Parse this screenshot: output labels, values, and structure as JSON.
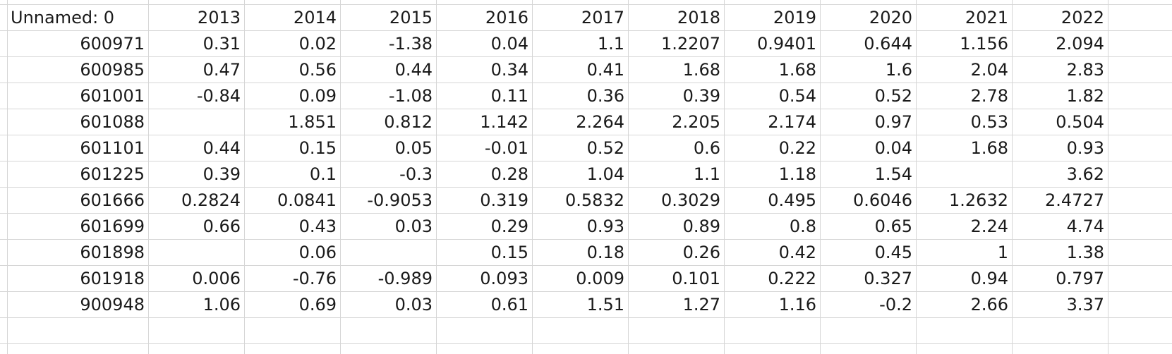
{
  "table": {
    "headers": [
      "Unnamed: 0",
      "2013",
      "2014",
      "2015",
      "2016",
      "2017",
      "2018",
      "2019",
      "2020",
      "2021",
      "2022"
    ],
    "rows": [
      [
        "600971",
        "0.31",
        "0.02",
        "-1.38",
        "0.04",
        "1.1",
        "1.2207",
        "0.9401",
        "0.644",
        "1.156",
        "2.094"
      ],
      [
        "600985",
        "0.47",
        "0.56",
        "0.44",
        "0.34",
        "0.41",
        "1.68",
        "1.68",
        "1.6",
        "2.04",
        "2.83"
      ],
      [
        "601001",
        "-0.84",
        "0.09",
        "-1.08",
        "0.11",
        "0.36",
        "0.39",
        "0.54",
        "0.52",
        "2.78",
        "1.82"
      ],
      [
        "601088",
        "",
        "1.851",
        "0.812",
        "1.142",
        "2.264",
        "2.205",
        "2.174",
        "0.97",
        "0.53",
        "0.504"
      ],
      [
        "601101",
        "0.44",
        "0.15",
        "0.05",
        "-0.01",
        "0.52",
        "0.6",
        "0.22",
        "0.04",
        "1.68",
        "0.93"
      ],
      [
        "601225",
        "0.39",
        "0.1",
        "-0.3",
        "0.28",
        "1.04",
        "1.1",
        "1.18",
        "1.54",
        "",
        "3.62"
      ],
      [
        "601666",
        "0.2824",
        "0.0841",
        "-0.9053",
        "0.319",
        "0.5832",
        "0.3029",
        "0.495",
        "0.6046",
        "1.2632",
        "2.4727"
      ],
      [
        "601699",
        "0.66",
        "0.43",
        "0.03",
        "0.29",
        "0.93",
        "0.89",
        "0.8",
        "0.65",
        "2.24",
        "4.74"
      ],
      [
        "601898",
        "",
        "0.06",
        "",
        "0.15",
        "0.18",
        "0.26",
        "0.42",
        "0.45",
        "1",
        "1.38"
      ],
      [
        "601918",
        "0.006",
        "-0.76",
        "-0.989",
        "0.093",
        "0.009",
        "0.101",
        "0.222",
        "0.327",
        "0.94",
        "0.797"
      ],
      [
        "900948",
        "1.06",
        "0.69",
        "0.03",
        "0.61",
        "1.51",
        "1.27",
        "1.16",
        "-0.2",
        "2.66",
        "3.37"
      ]
    ]
  }
}
